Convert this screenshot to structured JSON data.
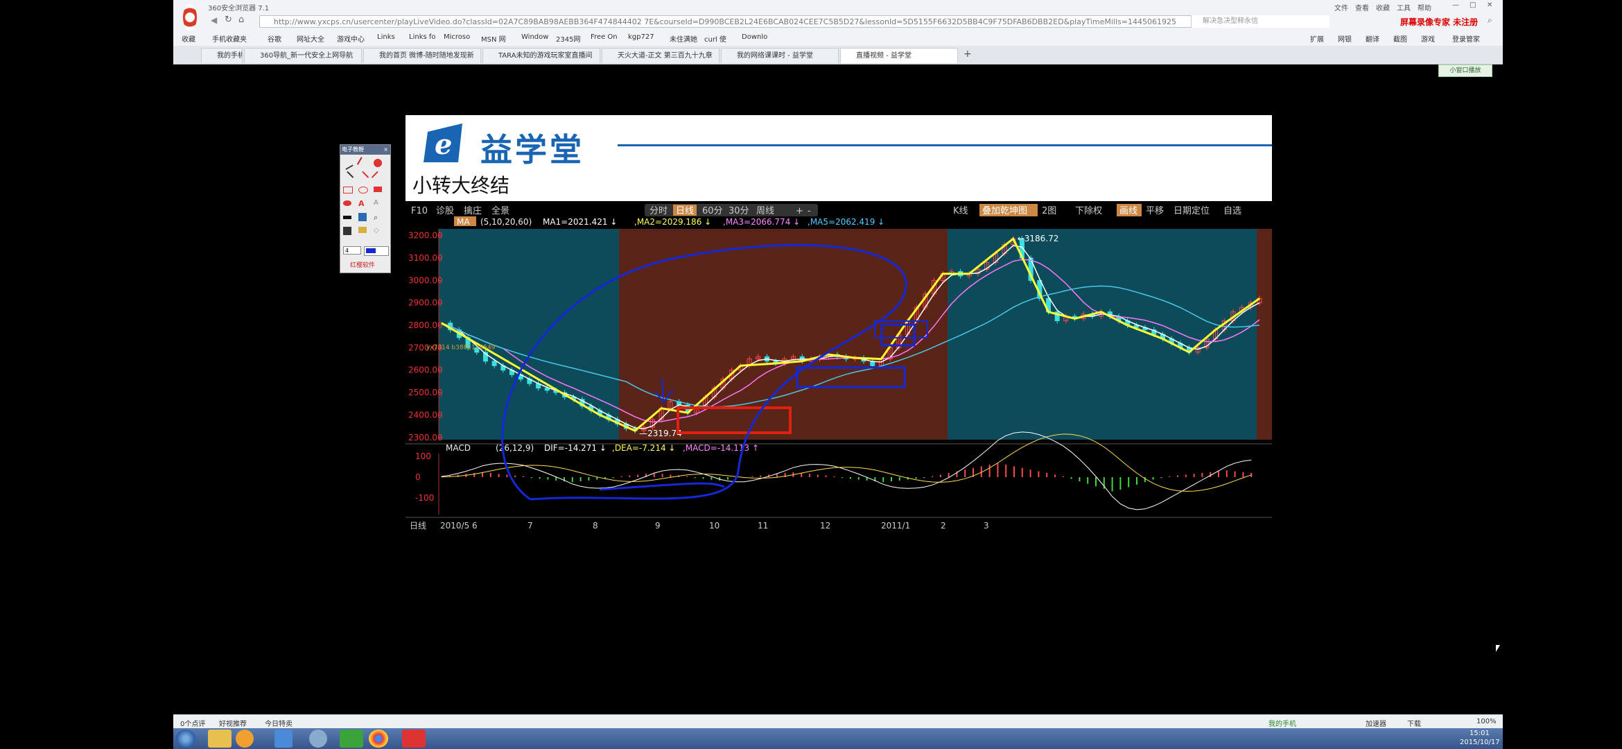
{
  "browser": {
    "title": "360安全浏览器 7.1",
    "menu": [
      "文件",
      "查看",
      "收藏",
      "工具",
      "帮助"
    ],
    "url": "http://www.yxcps.cn/usercenter/playLiveVideo.do?classId=02A7C89BAB98AEBB364F474844402 7E&courseId=D990BCEB2L24E6BCAB024CEE7C5B5D27&lessonId=5D5155F6632D5BB4C9F75DFAB6DBB2ED&playTimeMills=1445061925",
    "search_placeholder": "解决急决型释永信",
    "promo": "屏幕录像专家 未注册",
    "favorites": [
      "收藏",
      "手机收藏夹",
      "谷歌",
      "网址大全",
      "游戏中心",
      "Links",
      "Links fo",
      "Microso",
      "MSN 网",
      "Window",
      "2345网",
      "Free On",
      "kgp727",
      "未住满她",
      "curl 使",
      "Downlo"
    ],
    "right_tools": [
      "扩展",
      "网银",
      "翻译",
      "截图",
      "游戏",
      "登录管家"
    ],
    "tabs": [
      "我的手机",
      "360导航_新一代安全上网导航",
      "我的首页 微博-随时随地发现新",
      "TARA未知的游戏玩家室直播间",
      "天火大道-正文 第三百九十九章",
      "我的网络课课时 - 益学堂",
      "直播视频 - 益学堂"
    ],
    "mini_btn": "小窗口播放"
  },
  "video": {
    "logo_text": "益学堂",
    "lesson_title": "小转大终结"
  },
  "toolbox": {
    "title": "电子教鞭",
    "width_value": "4",
    "footer": "红樱软件"
  },
  "chart_toolbar": {
    "left": [
      "F10",
      "诊股",
      "擒庄",
      "全景"
    ],
    "periods": [
      "分时",
      "日线",
      "60分",
      "30分",
      "周线",
      "+",
      "-"
    ],
    "right": [
      "K线",
      "叠加乾坤图",
      "2图",
      "下除权",
      "画线",
      "平移",
      "日期定位",
      "自选"
    ]
  },
  "ma_line": {
    "label": "MA",
    "params": "(5,10,20,60)",
    "ma1": "MA1=2021.421 ↓",
    "ma2": ",MA2=2029.186 ↓",
    "ma3": ",MA3=2066.774 ↓",
    "ma5": ",MA5=2062.419 ↓"
  },
  "macd_line": {
    "label": "MACD",
    "params": "(26,12,9)",
    "dif": "DIF=-14.271 ↓",
    "dea": ",DEA=-7.214 ↓",
    "macd": ",MACD=-14.113 ↑"
  },
  "chart_data": {
    "type": "candlestick",
    "price_axis": [
      "3200.00",
      "3100.00",
      "3000.00",
      "2900.00",
      "2800.00",
      "2700.00",
      "2600.00",
      "2500.00",
      "2400.00",
      "2300.00"
    ],
    "ylim": [
      2290,
      3230
    ],
    "x_ticks": [
      "2010/5",
      "6",
      "7",
      "8",
      "9",
      "10",
      "11",
      "12",
      "2011/1",
      "2",
      "3"
    ],
    "period_label": "日线",
    "annotations": {
      "low": "2319.74",
      "high": "3186.72",
      "watermark": "yx7314 b3881136549"
    },
    "macd_axis": [
      "100",
      "0",
      "-100"
    ],
    "close_trace": [
      2810,
      2780,
      2745,
      2700,
      2680,
      2640,
      2620,
      2600,
      2580,
      2560,
      2540,
      2520,
      2510,
      2500,
      2480,
      2470,
      2440,
      2420,
      2400,
      2380,
      2360,
      2340,
      2330,
      2345,
      2380,
      2430,
      2460,
      2445,
      2410,
      2440,
      2480,
      2520,
      2560,
      2600,
      2620,
      2650,
      2660,
      2640,
      2630,
      2650,
      2660,
      2640,
      2650,
      2660,
      2670,
      2660,
      2650,
      2655,
      2640,
      2620,
      2650,
      2700,
      2760,
      2820,
      2880,
      2940,
      3000,
      3030,
      3040,
      3020,
      3030,
      3050,
      3080,
      3120,
      3160,
      3186,
      3100,
      3000,
      2920,
      2860,
      2820,
      2840,
      2830,
      2850,
      2840,
      2860,
      2840,
      2820,
      2800,
      2790,
      2780,
      2760,
      2740,
      2720,
      2700,
      2680,
      2700,
      2740,
      2780,
      2820,
      2860,
      2880,
      2900,
      2920
    ],
    "macd_hist": [
      2,
      4,
      6,
      8,
      10,
      12,
      10,
      8,
      6,
      4,
      2,
      -2,
      -4,
      -6,
      -8,
      -10,
      -12,
      -10,
      -8,
      -6,
      -4,
      -2,
      2,
      4,
      6,
      8,
      10,
      8,
      6,
      4,
      2,
      -2,
      -4,
      -6,
      -8,
      -6,
      -4,
      -2,
      2,
      4,
      6,
      8,
      10,
      12,
      10,
      8,
      6,
      4,
      2,
      -2,
      -4,
      -6,
      -8,
      -10,
      -12,
      -10,
      -8,
      -6,
      -4,
      -2,
      2,
      6,
      10,
      14,
      18,
      22,
      26,
      30,
      34,
      30,
      26,
      22,
      18,
      14,
      10,
      6,
      2,
      -4,
      -10,
      -16,
      -22,
      -28,
      -34,
      -30,
      -24,
      -18,
      -12,
      -6,
      -2,
      2,
      4,
      6,
      8,
      10,
      12,
      14,
      16,
      14,
      12,
      10
    ]
  },
  "status_bar": {
    "left": [
      "0个点评",
      "好视推荐",
      "今日特卖"
    ],
    "right": [
      "我的手机",
      "加速器",
      "下载",
      "100%"
    ]
  },
  "taskbar": {
    "time": "15:01",
    "date": "2015/10/17"
  }
}
